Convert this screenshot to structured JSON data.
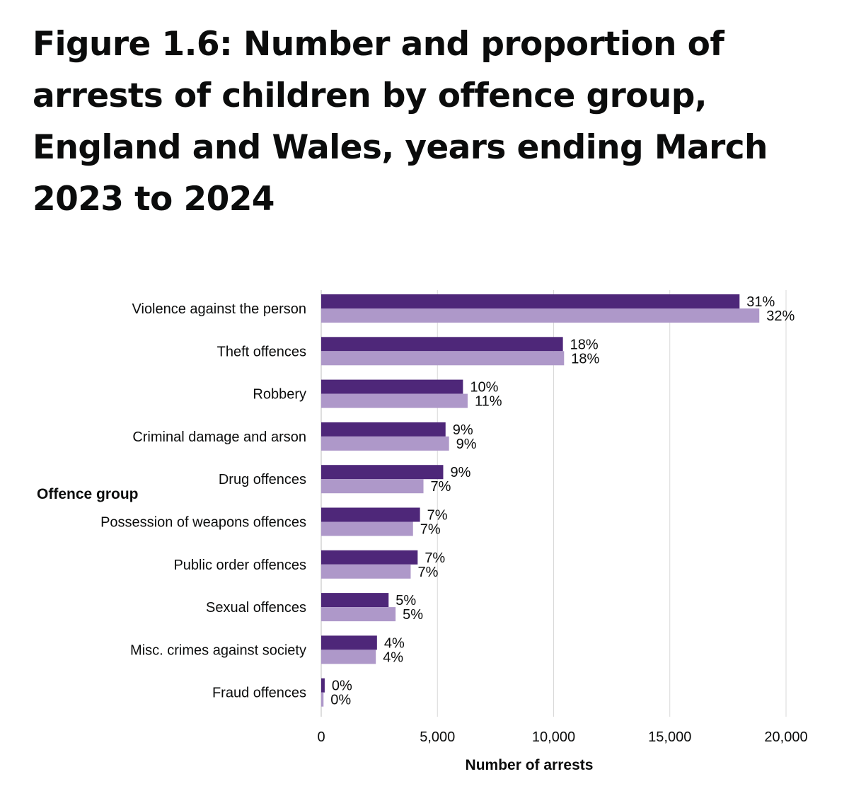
{
  "figure": {
    "title": "Figure 1.6: Number and proportion of arrests of children by offence group, England and Wales, years ending March 2023 to 2024"
  },
  "chart_data": {
    "type": "bar",
    "orientation": "horizontal",
    "xlabel": "Number of arrests",
    "ylabel": "Offence group",
    "xlim": [
      0,
      20000
    ],
    "x_ticks": [
      0,
      5000,
      10000,
      15000,
      20000
    ],
    "x_tick_labels": [
      "0",
      "5,000",
      "10,000",
      "15,000",
      "20,000"
    ],
    "grid": true,
    "categories": [
      "Violence against the person",
      "Theft offences",
      "Robbery",
      "Criminal damage and arson",
      "Drug offences",
      "Possession of weapons offences",
      "Public order offences",
      "Sexual offences",
      "Misc. crimes against society",
      "Fraud offences"
    ],
    "series": [
      {
        "color": "#4e2779",
        "values": [
          18000,
          10400,
          6100,
          5350,
          5250,
          4250,
          4150,
          2900,
          2400,
          150
        ],
        "labels": [
          "31%",
          "18%",
          "10%",
          "9%",
          "9%",
          "7%",
          "7%",
          "5%",
          "4%",
          "0%"
        ]
      },
      {
        "color": "#ae98c9",
        "values": [
          18850,
          10450,
          6300,
          5500,
          4400,
          3950,
          3850,
          3200,
          2350,
          100
        ],
        "labels": [
          "32%",
          "18%",
          "11%",
          "9%",
          "7%",
          "7%",
          "7%",
          "5%",
          "4%",
          "0%"
        ]
      }
    ]
  }
}
